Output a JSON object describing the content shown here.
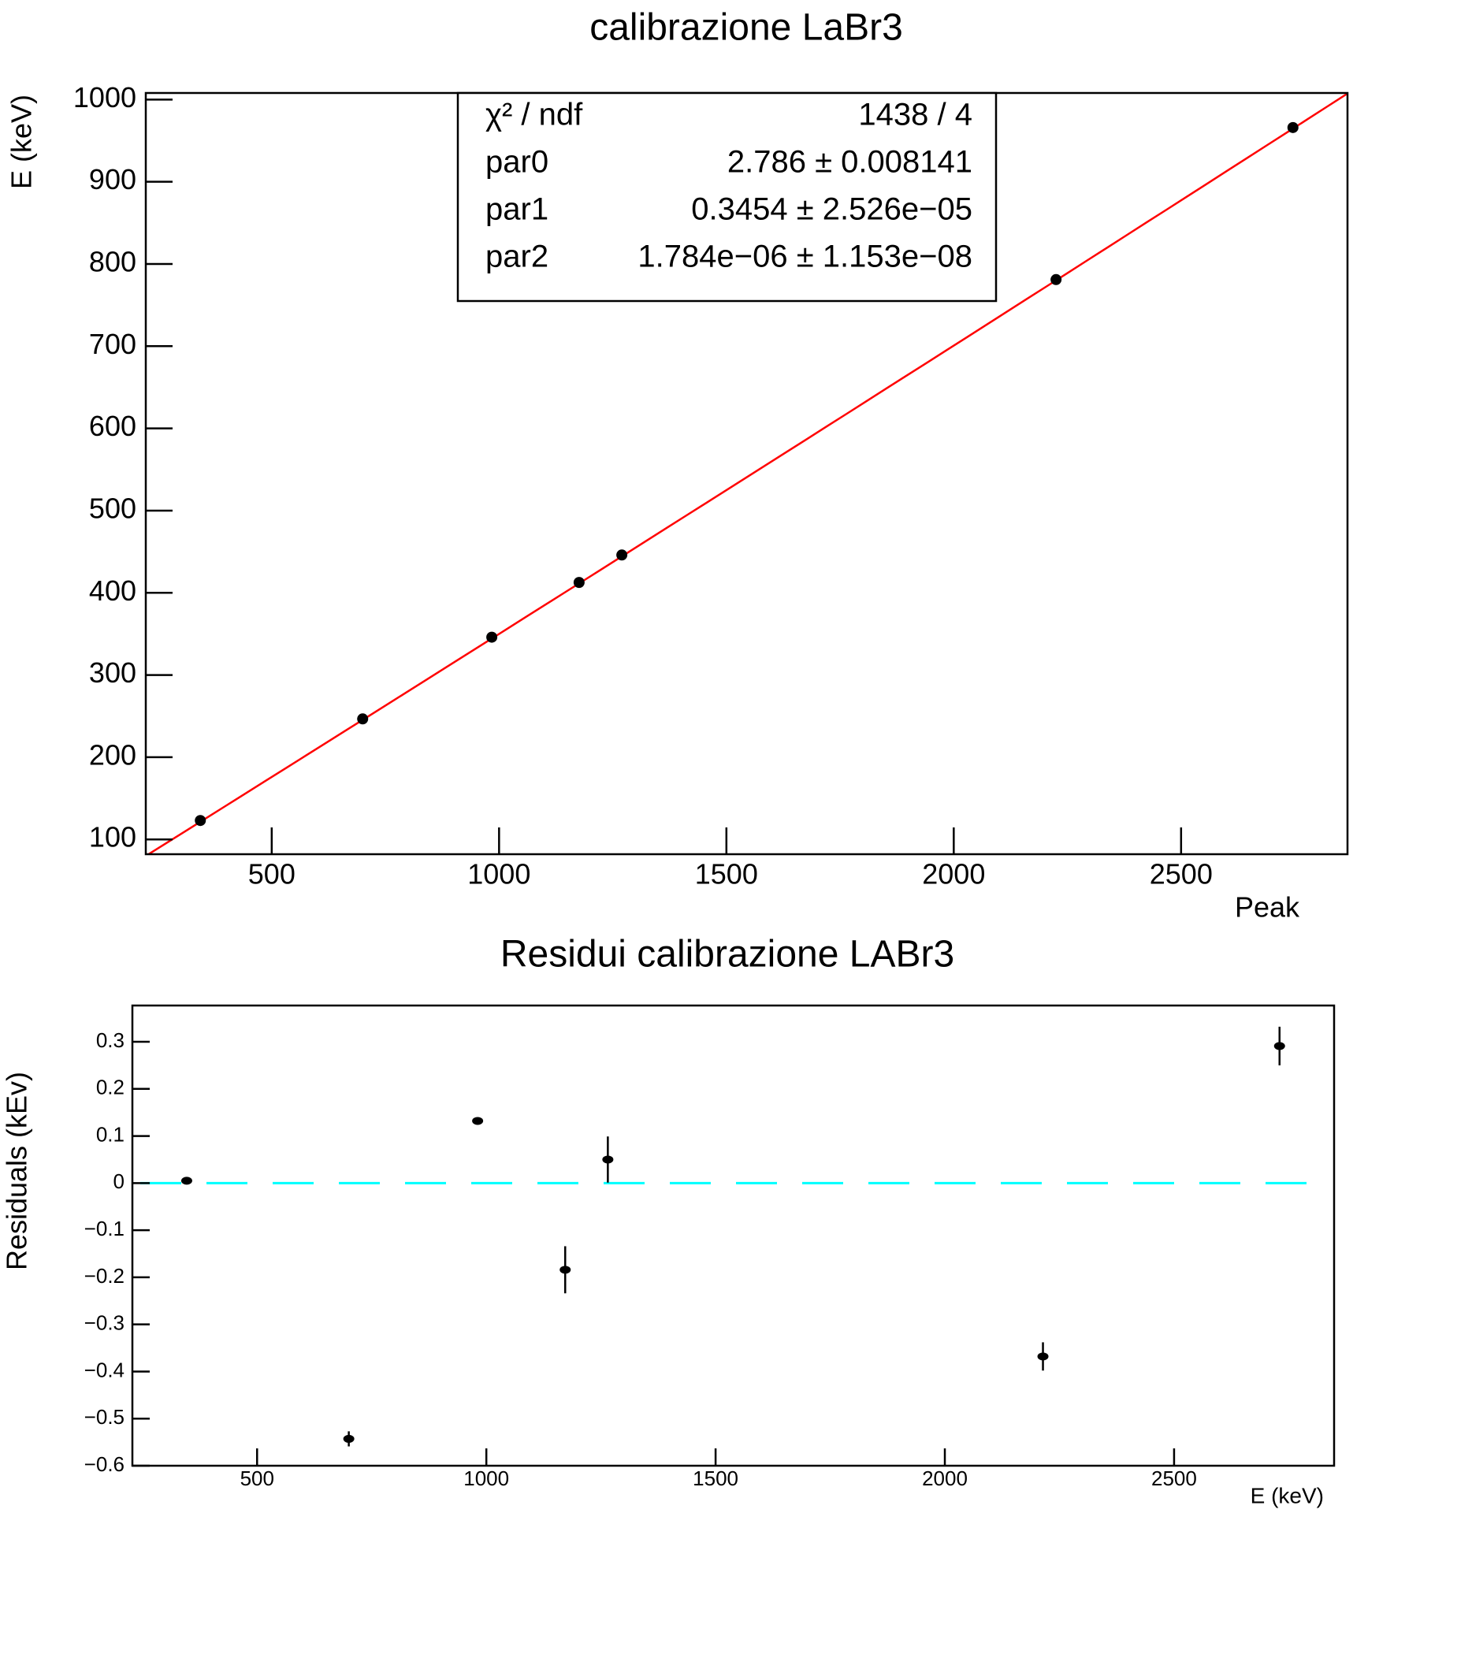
{
  "chart_data": [
    {
      "type": "scatter",
      "title": "calibrazione LaBr3",
      "x_label": "Peak",
      "y_label": "E (keV)",
      "x": [
        343,
        700,
        984,
        1176,
        1270,
        2225,
        2746
      ],
      "values": [
        123,
        246.6,
        346,
        412.6,
        446,
        781,
        966
      ],
      "color": "#000000",
      "xlim": [
        223,
        2866
      ],
      "ylim": [
        82,
        1008
      ],
      "xticks": [
        500,
        1000,
        1500,
        2000,
        2500
      ],
      "yticks": [
        100,
        200,
        300,
        400,
        500,
        600,
        700,
        800,
        900,
        1000
      ],
      "fit": {
        "color": "#ff0000",
        "params": [
          2.786,
          0.3454,
          1.784e-06
        ]
      },
      "stats": [
        {
          "label": "χ² / ndf",
          "value": "1438 / 4"
        },
        {
          "label": "par0",
          "value": "2.786 ± 0.008141"
        },
        {
          "label": "par1",
          "value": "0.3454 ± 2.526e−05"
        },
        {
          "label": "par2",
          "value": "1.784e−06 ± 1.153e−08"
        }
      ]
    },
    {
      "type": "errorbar",
      "title": "Residui calibrazione LABr3",
      "x_label": "E (keV)",
      "y_label": "Residuals (kEv)",
      "x": [
        346.5,
        700,
        981,
        1172,
        1265,
        2214,
        2730
      ],
      "values": [
        0.005,
        -0.543,
        0.132,
        -0.184,
        0.05,
        -0.368,
        0.291
      ],
      "errors": [
        0.003,
        0.016,
        0.005,
        0.05,
        0.049,
        0.03,
        0.041
      ],
      "color": "#000000",
      "xlim": [
        228,
        2849
      ],
      "ylim": [
        -0.6,
        0.377
      ],
      "xticks": [
        500,
        1000,
        1500,
        2000,
        2500
      ],
      "yticks": [
        0.3,
        0.2,
        0.1,
        0,
        {
          "value": -0.1,
          "label": "−0.1"
        },
        {
          "value": -0.2,
          "label": "−0.2"
        },
        {
          "value": -0.3,
          "label": "−0.3"
        },
        {
          "value": -0.4,
          "label": "−0.4"
        },
        {
          "value": -0.5,
          "label": "−0.5"
        },
        {
          "value": -0.6,
          "label": "−0.6"
        }
      ],
      "reference_line": {
        "value": 0,
        "color": "#00ffff"
      }
    }
  ]
}
